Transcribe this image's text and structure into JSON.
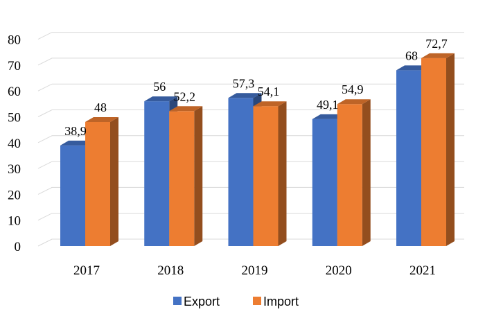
{
  "chart_data": {
    "type": "bar",
    "categories": [
      "2017",
      "2018",
      "2019",
      "2020",
      "2021"
    ],
    "series": [
      {
        "name": "Export",
        "values": [
          38.9,
          56,
          57.3,
          49.1,
          68
        ],
        "labels": [
          "38,9",
          "56",
          "57,3",
          "49,1",
          "68"
        ],
        "color": "#4472C4"
      },
      {
        "name": "Import",
        "values": [
          48,
          52.2,
          54.1,
          54.9,
          72.7
        ],
        "labels": [
          "48",
          "52,2",
          "54,1",
          "54,9",
          "72,7"
        ],
        "color": "#ED7D31"
      }
    ],
    "ylim": [
      0,
      80
    ],
    "yticks": [
      "0",
      "10",
      "20",
      "30",
      "40",
      "50",
      "60",
      "70",
      "80"
    ],
    "grid": true,
    "legend": "bottom",
    "style": "3d-column"
  }
}
